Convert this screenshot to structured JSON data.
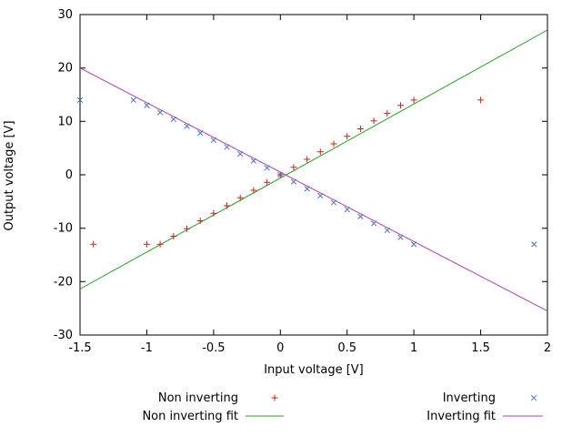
{
  "chart_data": {
    "type": "scatter",
    "title": "",
    "xlabel": "Input voltage [V]",
    "ylabel": "Output voltage [V]",
    "xlim": [
      -1.5,
      2
    ],
    "ylim": [
      -30,
      30
    ],
    "xticks": [
      -1.5,
      -1,
      -0.5,
      0,
      0.5,
      1,
      1.5,
      2
    ],
    "yticks": [
      -30,
      -20,
      -10,
      0,
      10,
      20,
      30
    ],
    "grid": false,
    "axis_color": "#000000",
    "text_color": "#000000",
    "legend_position": "below plot, two columns",
    "series": [
      {
        "name": "Non inverting",
        "style": "points",
        "marker": "plus",
        "color": "#cc2222",
        "points": [
          [
            -1.4,
            -13
          ],
          [
            -1,
            -13
          ],
          [
            -0.9,
            -13
          ],
          [
            -0.8,
            -11.5
          ],
          [
            -0.7,
            -10.1
          ],
          [
            -0.6,
            -8.6
          ],
          [
            -0.5,
            -7.2
          ],
          [
            -0.4,
            -5.8
          ],
          [
            -0.3,
            -4.3
          ],
          [
            -0.2,
            -2.9
          ],
          [
            -0.1,
            -1.4
          ],
          [
            0,
            0
          ],
          [
            0.1,
            1.4
          ],
          [
            0.2,
            2.9
          ],
          [
            0.3,
            4.3
          ],
          [
            0.4,
            5.8
          ],
          [
            0.5,
            7.2
          ],
          [
            0.6,
            8.6
          ],
          [
            0.7,
            10.1
          ],
          [
            0.8,
            11.5
          ],
          [
            0.9,
            13
          ],
          [
            1,
            14
          ],
          [
            1.5,
            14
          ]
        ]
      },
      {
        "name": "Inverting",
        "style": "points",
        "marker": "cross",
        "color": "#4575c4",
        "points": [
          [
            -1.5,
            14
          ],
          [
            -1.1,
            14
          ],
          [
            -1,
            13
          ],
          [
            -0.9,
            11.7
          ],
          [
            -0.8,
            10.4
          ],
          [
            -0.7,
            9.1
          ],
          [
            -0.6,
            7.8
          ],
          [
            -0.5,
            6.5
          ],
          [
            -0.4,
            5.2
          ],
          [
            -0.3,
            3.9
          ],
          [
            -0.2,
            2.6
          ],
          [
            -0.1,
            1.3
          ],
          [
            0,
            0
          ],
          [
            0.1,
            -1.3
          ],
          [
            0.2,
            -2.6
          ],
          [
            0.3,
            -3.9
          ],
          [
            0.4,
            -5.2
          ],
          [
            0.5,
            -6.5
          ],
          [
            0.6,
            -7.8
          ],
          [
            0.7,
            -9.1
          ],
          [
            0.8,
            -10.4
          ],
          [
            0.9,
            -11.7
          ],
          [
            1,
            -13
          ],
          [
            1.9,
            -13
          ]
        ]
      },
      {
        "name": "Non inverting fit",
        "style": "line",
        "color": "#22a022",
        "points": [
          [
            -1.5,
            -21.4
          ],
          [
            2,
            27.1
          ]
        ]
      },
      {
        "name": "Inverting fit",
        "style": "line",
        "color": "#b040b0",
        "points": [
          [
            -1.5,
            20
          ],
          [
            2,
            -25.5
          ]
        ]
      }
    ]
  }
}
